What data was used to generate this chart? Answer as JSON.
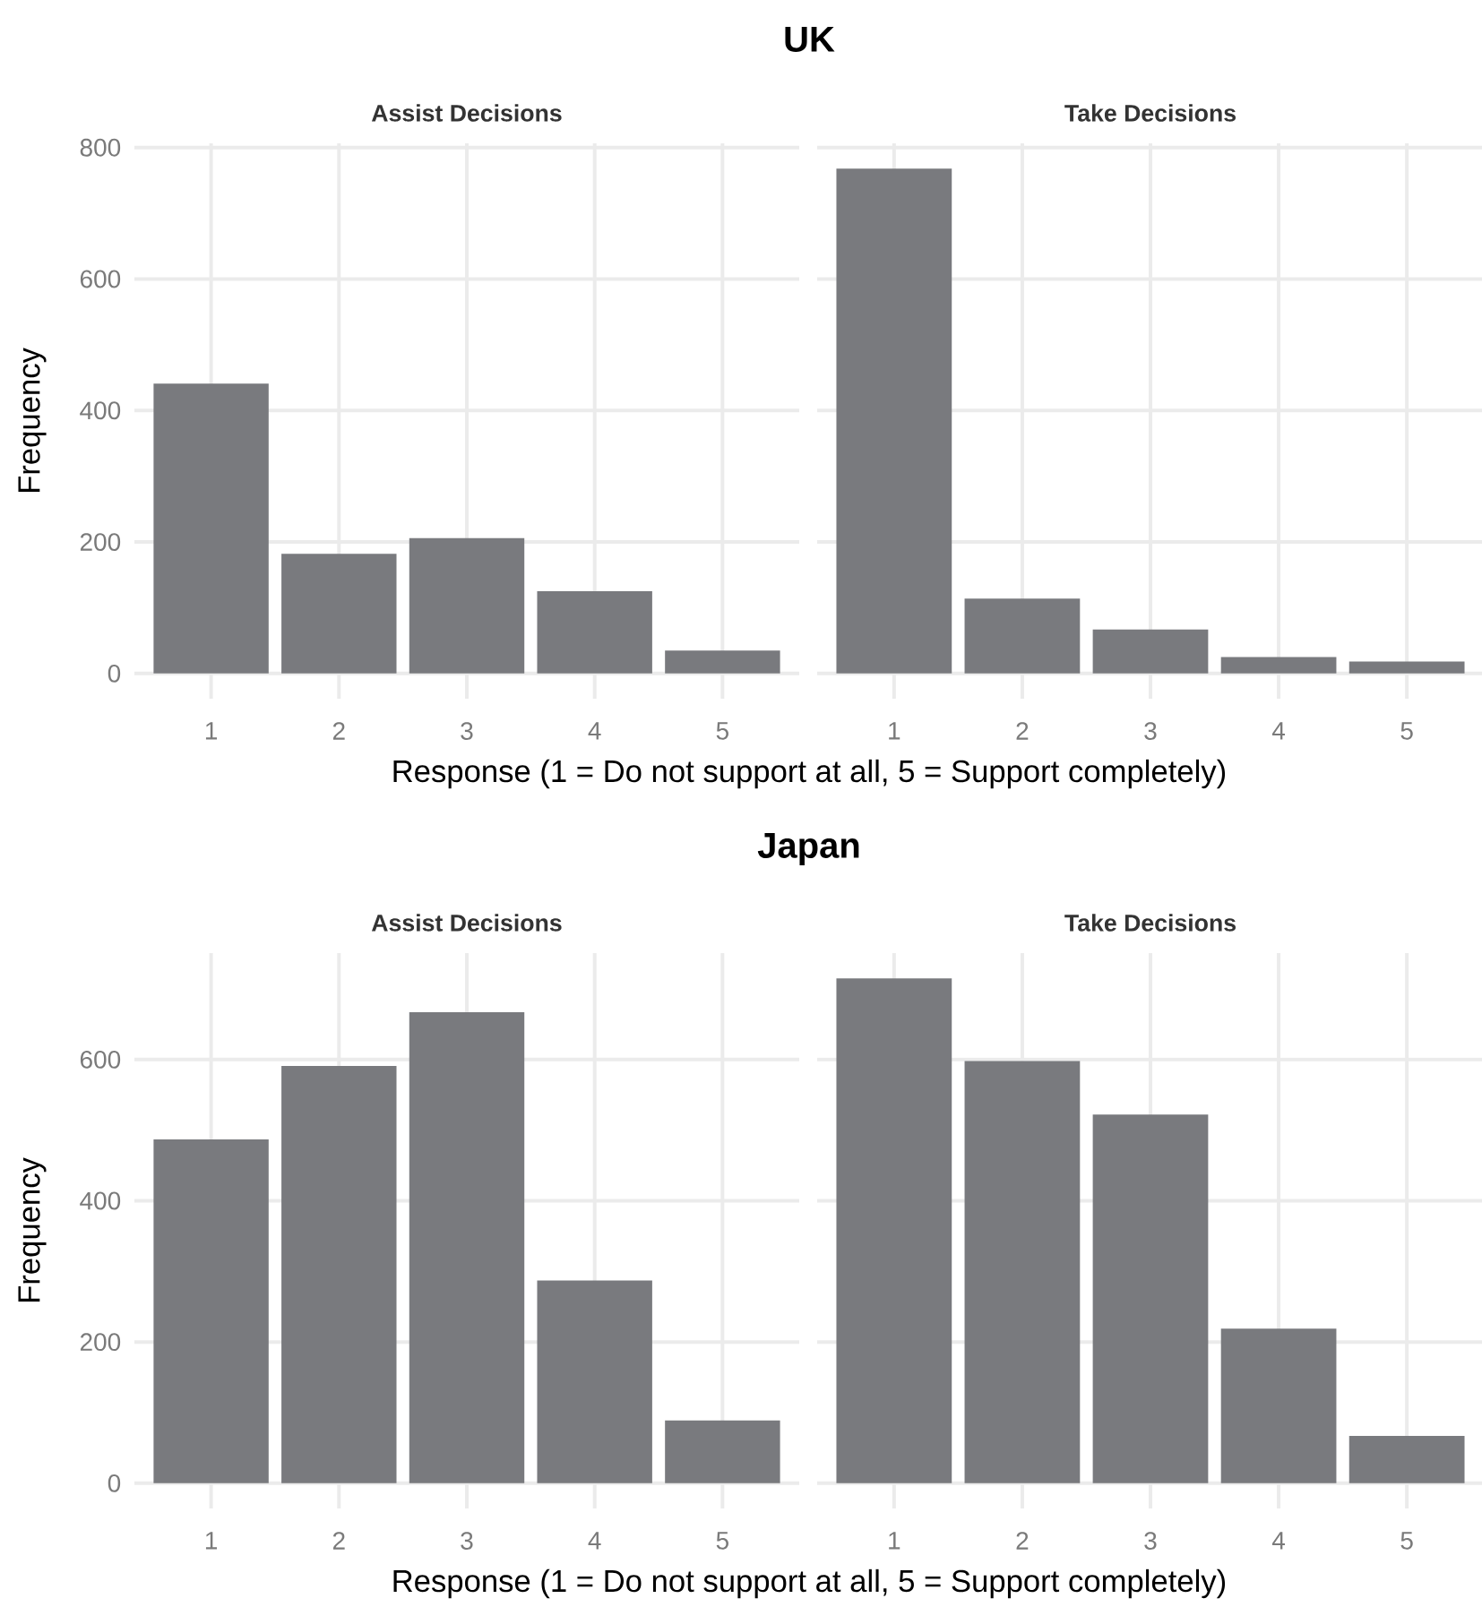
{
  "chart_data": [
    {
      "type": "bar",
      "title": "UK",
      "subtitle": "Assist Decisions",
      "xlabel": "Response (1 = Do not support at all, 5 = Support completely)",
      "ylabel": "Frequency",
      "categories": [
        "1",
        "2",
        "3",
        "4",
        "5"
      ],
      "values": [
        441,
        182,
        206,
        125,
        35
      ],
      "color": "#797a7e",
      "ylim": [
        -38.4,
        806.4
      ],
      "yticks": [
        0,
        200,
        400,
        600,
        800
      ],
      "grid": true
    },
    {
      "type": "bar",
      "subtitle": "Take Decisions",
      "categories": [
        "1",
        "2",
        "3",
        "4",
        "5"
      ],
      "values": [
        768,
        114,
        67,
        25,
        18
      ],
      "color": "#797a7e",
      "ylim": [
        -38.4,
        806.4
      ],
      "yticks": [
        0,
        200,
        400,
        600,
        800
      ],
      "grid": true,
      "tick_labels": "x"
    },
    {
      "type": "bar",
      "title": "Japan",
      "subtitle": "Assist Decisions",
      "xlabel": "Response (1 = Do not support at all, 5 = Support completely)",
      "ylabel": "Frequency",
      "categories": [
        "1",
        "2",
        "3",
        "4",
        "5"
      ],
      "values": [
        487,
        591,
        667,
        287,
        89
      ],
      "color": "#797a7e",
      "ylim": [
        -35.75,
        750.75
      ],
      "yticks": [
        0,
        200,
        400,
        600
      ],
      "grid": true
    },
    {
      "type": "bar",
      "subtitle": "Take Decisions",
      "categories": [
        "1",
        "2",
        "3",
        "4",
        "5"
      ],
      "values": [
        715,
        598,
        522,
        219,
        67
      ],
      "color": "#797a7e",
      "ylim": [
        -35.75,
        750.75
      ],
      "yticks": [
        0,
        200,
        400,
        600
      ],
      "grid": true,
      "tick_labels": "x"
    }
  ]
}
